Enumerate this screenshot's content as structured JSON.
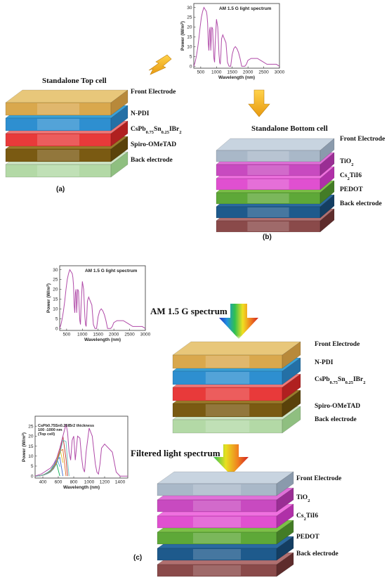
{
  "panel_a": {
    "caption": "(a)",
    "title": "Standalone Top cell",
    "layers": [
      {
        "label": "Front Electrode",
        "top": "#e8c77a",
        "front": "#d9a84d",
        "side": "#b8893a"
      },
      {
        "label": "N-PDI",
        "top": "#3aa1d8",
        "front": "#2e8fd0",
        "side": "#2470a6"
      },
      {
        "label": "CsPb0.75Sn0.25IBr2",
        "label_main": "CsPb",
        "label_sub1": "0.75",
        "label_mid": "Sn",
        "label_sub2": "0.25",
        "label_end": "IBr",
        "label_sub3": "2",
        "top": "#f07878",
        "front": "#e83a3a",
        "side": "#b02020"
      },
      {
        "label": "Spiro-OMeTAD",
        "top": "#9a7a2a",
        "front": "#7a5a12",
        "side": "#5a420a"
      },
      {
        "label": "Back electrode",
        "top": "#cfe6c6",
        "front": "#b3d9a6",
        "side": "#8fbf80"
      }
    ]
  },
  "panel_b": {
    "caption": "(b)",
    "title": "Standalone Bottom cell",
    "layers": [
      {
        "label": "Front Electrode",
        "top": "#c8d4e0",
        "front": "#a9b8c8",
        "side": "#8a9aac"
      },
      {
        "label": "TiO2",
        "label_main": "TiO",
        "label_sub1": "2",
        "top": "#e070d8",
        "front": "#c84ac0",
        "side": "#9a2e94"
      },
      {
        "label": "Cs2TiI6",
        "label_main": "Cs",
        "label_sub1": "2",
        "label_mid": "TiI6",
        "top": "#f070e0",
        "front": "#e050d0",
        "side": "#b030a8"
      },
      {
        "label": "PEDOT",
        "top": "#7cc048",
        "front": "#5ea838",
        "side": "#437c26"
      },
      {
        "label": "Back electrode",
        "top": "#2a6aa0",
        "front": "#1e5a8c",
        "side": "#143e62"
      },
      {
        "label": "",
        "top": "#b07070",
        "front": "#8a4a4a",
        "side": "#5e2c2c"
      }
    ]
  },
  "panel_c": {
    "caption": "(c)",
    "am_label": "AM 1.5 G spectrum",
    "filtered_label": "Filtered light spectrum",
    "top_layers": [
      "Front Electrode",
      "N-PDI",
      "CsPb0.75Sn0.25IBr2",
      "Spiro-OMeTAD",
      "Back electrode"
    ],
    "bottom_layers": [
      "Front Electrode",
      "TiO2",
      "Cs2TiI6",
      "PEDOT",
      "Back electrode"
    ]
  },
  "chart_data": [
    {
      "type": "line",
      "title": "AM 1.5 G light spectrum",
      "xlabel": "Wavelength (nm)",
      "ylabel": "Power (W/m²)",
      "xlim": [
        280,
        3000
      ],
      "ylim": [
        -1,
        32
      ],
      "xticks": [
        500,
        1000,
        1500,
        2000,
        2500,
        3000
      ],
      "yticks": [
        0,
        5,
        10,
        15,
        20,
        25,
        30
      ],
      "color": "#b04aa8",
      "x": [
        280,
        320,
        360,
        400,
        440,
        480,
        520,
        560,
        600,
        640,
        680,
        700,
        720,
        740,
        760,
        780,
        800,
        820,
        850,
        880,
        900,
        920,
        940,
        960,
        1000,
        1040,
        1080,
        1100,
        1120,
        1140,
        1160,
        1200,
        1250,
        1300,
        1350,
        1400,
        1450,
        1500,
        1550,
        1600,
        1650,
        1700,
        1750,
        1800,
        1850,
        1900,
        1950,
        2000,
        2100,
        2200,
        2300,
        2400,
        2500,
        2600,
        2700,
        2800,
        2900,
        3000
      ],
      "y": [
        0,
        2,
        5,
        9,
        14,
        20,
        25,
        28,
        30,
        29,
        28,
        26,
        22,
        12,
        8,
        18,
        20,
        8,
        20,
        19,
        10,
        4,
        2,
        12,
        24,
        20,
        6,
        2,
        1,
        6,
        14,
        16,
        14,
        12,
        2,
        0,
        0,
        6,
        9,
        10,
        9,
        7,
        4,
        0,
        0,
        0,
        1,
        3,
        4,
        4,
        4,
        3,
        2,
        1,
        1,
        1,
        1,
        0
      ]
    },
    {
      "type": "line",
      "title": "AM 1.5 G light spectrum",
      "xlabel": "Wavelength (nm)",
      "ylabel": "Power (W/m²)",
      "xlim": [
        280,
        3000
      ],
      "ylim": [
        -1,
        32
      ],
      "xticks": [
        500,
        1000,
        1500,
        2000,
        2500,
        3000
      ],
      "yticks": [
        0,
        5,
        10,
        15,
        20,
        25,
        30
      ],
      "color": "#b04aa8",
      "x": [
        280,
        320,
        360,
        400,
        440,
        480,
        520,
        560,
        600,
        640,
        680,
        700,
        720,
        740,
        760,
        780,
        800,
        820,
        850,
        880,
        900,
        920,
        940,
        960,
        1000,
        1040,
        1080,
        1100,
        1120,
        1140,
        1160,
        1200,
        1250,
        1300,
        1350,
        1400,
        1450,
        1500,
        1550,
        1600,
        1650,
        1700,
        1750,
        1800,
        1850,
        1900,
        1950,
        2000,
        2100,
        2200,
        2300,
        2400,
        2500,
        2600,
        2700,
        2800,
        2900,
        3000
      ],
      "y": [
        0,
        2,
        5,
        9,
        14,
        20,
        25,
        28,
        30,
        29,
        28,
        26,
        22,
        12,
        8,
        18,
        20,
        8,
        20,
        19,
        10,
        4,
        2,
        12,
        24,
        20,
        6,
        2,
        1,
        6,
        14,
        16,
        14,
        12,
        2,
        0,
        0,
        6,
        9,
        10,
        9,
        7,
        4,
        0,
        0,
        0,
        1,
        3,
        4,
        4,
        4,
        3,
        2,
        1,
        1,
        1,
        1,
        0
      ]
    },
    {
      "type": "line",
      "title": "",
      "legend_text": [
        "CsPb0.75Sn0.25IBr2 thickness",
        "100 -1000 nm",
        "(Top cell)"
      ],
      "xlabel": "Wavelength (nm)",
      "ylabel": "Power (W/m²)",
      "xlim": [
        300,
        1500
      ],
      "ylim": [
        -1,
        30
      ],
      "xticks": [
        400,
        600,
        800,
        1000,
        1200,
        1400
      ],
      "yticks": [
        0,
        5,
        10,
        15,
        20,
        25
      ],
      "main_color": "#b04aa8",
      "x": [
        300,
        340,
        380,
        420,
        460,
        500,
        540,
        580,
        620,
        660,
        700,
        720,
        740,
        760,
        780,
        800,
        820,
        850,
        880,
        900,
        920,
        940,
        960,
        1000,
        1040,
        1080,
        1100,
        1120,
        1140,
        1160,
        1200,
        1250,
        1300,
        1350,
        1400,
        1450,
        1500
      ],
      "y": [
        0,
        0.5,
        1,
        2,
        3,
        4,
        6,
        9,
        14,
        20,
        26,
        22,
        12,
        8,
        18,
        20,
        8,
        20,
        19,
        10,
        4,
        2,
        12,
        24,
        20,
        6,
        2,
        1,
        6,
        14,
        16,
        14,
        12,
        2,
        0,
        0,
        0
      ],
      "filtered_series": [
        {
          "cutoff": 560,
          "color": "#00b050"
        },
        {
          "cutoff": 580,
          "color": "#4aa8e0"
        },
        {
          "cutoff": 600,
          "color": "#3a6ad0"
        },
        {
          "cutoff": 620,
          "color": "#e0c020"
        },
        {
          "cutoff": 640,
          "color": "#e07020"
        },
        {
          "cutoff": 660,
          "color": "#c03030"
        },
        {
          "cutoff": 680,
          "color": "#60c0c0"
        }
      ]
    }
  ]
}
